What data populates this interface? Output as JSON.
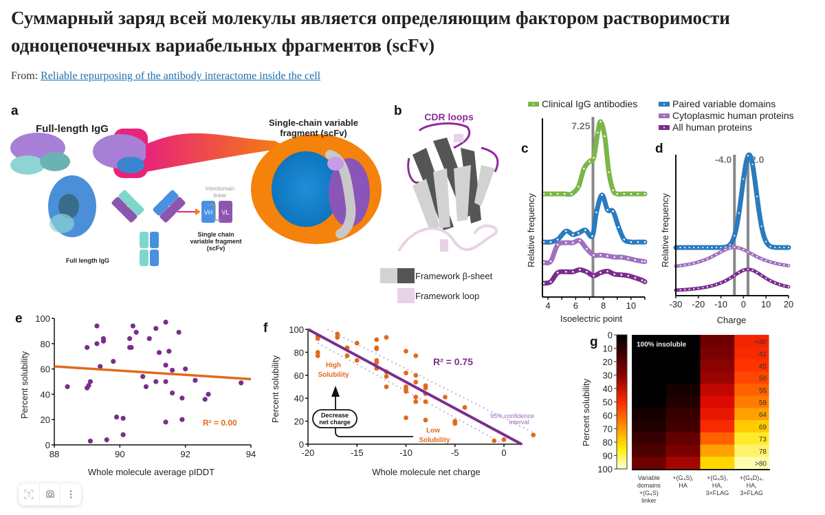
{
  "page": {
    "title": "Суммарный заряд всей молекулы является определяющим фактором растворимости одноцепочечных вариабельных фрагментов (scFv)",
    "from_label": "From:",
    "from_link": "Reliable repurposing of the antibody interactome inside the cell"
  },
  "panel_a": {
    "label": "a",
    "igg_title": "Full-length IgG",
    "scfv_title_1": "Single-chain variable",
    "scfv_title_2": "fragment (scFv)",
    "linker_1": "Interdomain",
    "linker_2": "linker",
    "vh": "VH",
    "vl": "VL",
    "scfv_caption_1": "Single chain",
    "scfv_caption_2": "variable fragment",
    "scfv_caption_3": "(scFv)",
    "igg_caption": "Full length IgG"
  },
  "panel_b": {
    "label": "b",
    "cdr": "CDR loops",
    "legend_sheet": "Framework β-sheet",
    "legend_loop": "Framework loop"
  },
  "legend_cd": [
    {
      "name": "Clinical IgG antibodies",
      "color": "#7ab648"
    },
    {
      "name": "Paired variable domains",
      "color": "#2a7bbf"
    },
    {
      "name": "Cytoplasmic human proteins",
      "color": "#a070c0"
    },
    {
      "name": "All human proteins",
      "color": "#7b2d8e"
    }
  ],
  "chart_data": [
    {
      "id": "c",
      "type": "line",
      "label": "c",
      "xlabel": "Isoelectric point",
      "ylabel": "Relative frequency",
      "xlim": [
        3.6,
        11
      ],
      "xticks": [
        4,
        6,
        8,
        10
      ],
      "marker": {
        "value": 7.25,
        "label": "7.25"
      },
      "series": [
        {
          "name": "Clinical IgG antibodies",
          "color": "#7ab648",
          "x": [
            3.7,
            4.2,
            4.7,
            5.2,
            5.7,
            6.2,
            6.6,
            7.0,
            7.3,
            7.6,
            7.8,
            8.1,
            8.4,
            8.7,
            9.0,
            9.5,
            10,
            10.5,
            11
          ],
          "y": [
            0,
            0,
            0,
            0,
            0,
            0.1,
            0.35,
            0.45,
            0.5,
            0.85,
            1.0,
            0.8,
            0.3,
            0.05,
            0,
            0,
            0,
            0,
            0
          ]
        },
        {
          "name": "Paired variable domains",
          "color": "#2a7bbf",
          "x": [
            3.7,
            4.2,
            4.7,
            5.3,
            5.8,
            6.2,
            6.7,
            7.2,
            7.5,
            7.9,
            8.3,
            8.7,
            9.1,
            9.5,
            10,
            10.5,
            11
          ],
          "y": [
            0,
            0,
            0.05,
            0.22,
            0.15,
            0.18,
            0.24,
            0.12,
            0.6,
            0.95,
            0.65,
            0.62,
            0.3,
            0.05,
            0,
            0,
            0
          ],
          "offset": 0
        },
        {
          "name": "Cytoplasmic human proteins",
          "color": "#a070c0",
          "x": [
            3.7,
            4.2,
            4.7,
            5.3,
            5.8,
            6.3,
            6.8,
            7.3,
            7.8,
            8.3,
            8.8,
            9.3,
            9.8,
            10.3,
            10.8,
            11
          ],
          "y": [
            0.02,
            0.05,
            0.45,
            0.5,
            0.5,
            0.55,
            0.35,
            0.2,
            0.2,
            0.18,
            0.15,
            0.15,
            0.12,
            0.08,
            0.05,
            0.04
          ]
        },
        {
          "name": "All human proteins",
          "color": "#7b2d8e",
          "x": [
            3.7,
            4.2,
            4.7,
            5.3,
            5.8,
            6.3,
            6.8,
            7.3,
            7.8,
            8.3,
            8.8,
            9.3,
            9.8,
            10.3,
            10.8,
            11
          ],
          "y": [
            0.0,
            0.05,
            0.35,
            0.38,
            0.38,
            0.45,
            0.38,
            0.25,
            0.35,
            0.4,
            0.3,
            0.28,
            0.25,
            0.18,
            0.1,
            0.05
          ]
        }
      ]
    },
    {
      "id": "d",
      "type": "line",
      "label": "d",
      "xlabel": "Charge",
      "ylabel": "Relative frequency",
      "xlim": [
        -30,
        20
      ],
      "xticks": [
        -30,
        -20,
        -10,
        0,
        10,
        20
      ],
      "markers": [
        {
          "value": -4.0,
          "label": "-4.0"
        },
        {
          "value": 2.0,
          "label": "2.0"
        }
      ],
      "series": [
        {
          "name": "Paired variable domains",
          "color": "#2a7bbf",
          "center": 2.5,
          "width": 3.2,
          "peak": 1.0
        },
        {
          "name": "Cytoplasmic human proteins",
          "color": "#a070c0",
          "center": -4,
          "width": 12,
          "peak": 0.35
        },
        {
          "name": "All human proteins",
          "color": "#7b2d8e",
          "center": 2,
          "width": 10,
          "peak": 0.38
        }
      ]
    },
    {
      "id": "e",
      "type": "scatter",
      "label": "e",
      "xlabel": "Whole molecule average pIDDT",
      "ylabel": "Percent solubility",
      "xlim": [
        88,
        94
      ],
      "ylim": [
        0,
        100
      ],
      "xticks": [
        88,
        90,
        92,
        94
      ],
      "yticks": [
        0,
        20,
        40,
        60,
        80,
        100
      ],
      "point_color": "#7b2d8e",
      "fit": {
        "x": [
          88,
          94
        ],
        "y": [
          62,
          52
        ],
        "color": "#e06a1b",
        "label": "R² = 0.00"
      },
      "points": [
        [
          88.4,
          46
        ],
        [
          89.0,
          77
        ],
        [
          89.0,
          45
        ],
        [
          89.05,
          47
        ],
        [
          89.1,
          50
        ],
        [
          89.1,
          3
        ],
        [
          89.3,
          94
        ],
        [
          89.3,
          80
        ],
        [
          89.4,
          62
        ],
        [
          89.5,
          84
        ],
        [
          89.5,
          82
        ],
        [
          89.6,
          4
        ],
        [
          89.8,
          66
        ],
        [
          89.9,
          22
        ],
        [
          90.1,
          21
        ],
        [
          90.1,
          8
        ],
        [
          90.3,
          84
        ],
        [
          90.3,
          77
        ],
        [
          90.35,
          77
        ],
        [
          90.4,
          94
        ],
        [
          90.5,
          89
        ],
        [
          90.7,
          54
        ],
        [
          90.8,
          46
        ],
        [
          90.9,
          84
        ],
        [
          91.1,
          92
        ],
        [
          91.1,
          50
        ],
        [
          91.2,
          73
        ],
        [
          91.4,
          97
        ],
        [
          91.4,
          63
        ],
        [
          91.4,
          50
        ],
        [
          91.4,
          18
        ],
        [
          91.5,
          74
        ],
        [
          91.6,
          59
        ],
        [
          91.6,
          41
        ],
        [
          91.8,
          89
        ],
        [
          91.9,
          37
        ],
        [
          91.9,
          20
        ],
        [
          92.0,
          60
        ],
        [
          92.3,
          51
        ],
        [
          92.6,
          36
        ],
        [
          92.7,
          40
        ],
        [
          93.7,
          49
        ]
      ]
    },
    {
      "id": "f",
      "type": "scatter",
      "label": "f",
      "xlabel": "Whole molecule net charge",
      "ylabel": "Percent solubility",
      "xlim": [
        -20,
        4
      ],
      "ylim": [
        0,
        100
      ],
      "xticks": [
        -20,
        -15,
        -10,
        -5,
        0
      ],
      "yticks": [
        0,
        20,
        40,
        60,
        80,
        100
      ],
      "point_color": "#e06a1b",
      "fit": {
        "x": [
          -20,
          1.8
        ],
        "y": [
          100,
          0
        ],
        "color": "#7b2d8e",
        "label": "R² = 0.75"
      },
      "ci_label_1": "95% confidence",
      "ci_label_2": "interval",
      "high_label_1": "High",
      "high_label_2": "Solubility",
      "low_label_1": "Low",
      "low_label_2": "Solubility",
      "arrow_label_1": "Decrease",
      "arrow_label_2": "net charge",
      "points": [
        [
          -19,
          94
        ],
        [
          -19,
          92
        ],
        [
          -19,
          80
        ],
        [
          -19,
          77
        ],
        [
          -17,
          96
        ],
        [
          -17,
          93
        ],
        [
          -16,
          84
        ],
        [
          -16,
          77
        ],
        [
          -15,
          88
        ],
        [
          -15,
          73
        ],
        [
          -13,
          91
        ],
        [
          -13,
          84
        ],
        [
          -13,
          83
        ],
        [
          -13,
          73
        ],
        [
          -13,
          71
        ],
        [
          -13,
          66
        ],
        [
          -12,
          93
        ],
        [
          -12,
          63
        ],
        [
          -12,
          59
        ],
        [
          -12,
          50
        ],
        [
          -10,
          81
        ],
        [
          -10,
          62
        ],
        [
          -10,
          50
        ],
        [
          -10,
          48
        ],
        [
          -10,
          46
        ],
        [
          -10,
          23
        ],
        [
          -9,
          77
        ],
        [
          -9,
          60
        ],
        [
          -9,
          54
        ],
        [
          -9,
          41
        ],
        [
          -9,
          37
        ],
        [
          -8,
          51
        ],
        [
          -8,
          49
        ],
        [
          -8,
          44
        ],
        [
          -8,
          37
        ],
        [
          -8,
          21
        ],
        [
          -6,
          41
        ],
        [
          -5,
          20
        ],
        [
          -5,
          18
        ],
        [
          -4,
          32
        ],
        [
          -1,
          3
        ],
        [
          0,
          4
        ],
        [
          3,
          8
        ]
      ]
    },
    {
      "id": "g",
      "type": "heatmap",
      "label": "g",
      "ylabel": "Percent solubility",
      "colorbar_ticks": [
        0,
        10,
        20,
        30,
        40,
        50,
        60,
        70,
        80,
        90,
        100
      ],
      "annotation": "100% insoluble",
      "categories": [
        "Variable domains +(G4S) linker",
        "+(G4S), HA",
        "+(G4S), HA, 3×FLAG",
        "+(G4D)4, HA, 3×FLAG"
      ],
      "category_lines": [
        [
          "Variable",
          "domains",
          "+(G₄S)",
          "linker"
        ],
        [
          "+(G₄S),",
          "HA"
        ],
        [
          "+(G₄S),",
          "HA,",
          "3×FLAG"
        ],
        [
          "+(G₄D)₄,",
          "HA,",
          "3×FLAG"
        ]
      ],
      "row_labels": [
        "<40",
        "41",
        "45",
        "50",
        "55",
        "59",
        "64",
        "69",
        "73",
        "78",
        ">80"
      ],
      "values": [
        [
          0,
          0,
          20,
          50
        ],
        [
          0,
          0,
          22,
          52
        ],
        [
          0,
          0,
          25,
          55
        ],
        [
          0,
          0,
          28,
          58
        ],
        [
          0,
          4,
          35,
          62
        ],
        [
          0,
          6,
          40,
          66
        ],
        [
          4,
          10,
          45,
          72
        ],
        [
          6,
          12,
          52,
          80
        ],
        [
          10,
          18,
          62,
          88
        ],
        [
          14,
          22,
          72,
          93
        ],
        [
          20,
          30,
          82,
          98
        ]
      ]
    }
  ],
  "toolbar": {
    "items": [
      {
        "icon": "text-select-icon"
      },
      {
        "icon": "lens-icon"
      },
      {
        "icon": "more-vertical-icon"
      }
    ]
  }
}
